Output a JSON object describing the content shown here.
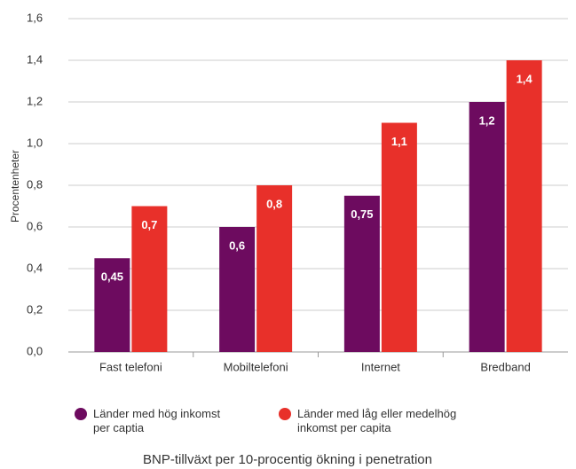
{
  "chart_data": {
    "type": "bar",
    "title": "BNP-tillväxt per 10-procentig ökning i penetration",
    "y_label": "Procentenheter",
    "categories": [
      "Fast telefoni",
      "Mobiltelefoni",
      "Internet",
      "Bredband"
    ],
    "series": [
      {
        "name": "Länder med hög inkomst per captia",
        "color": "#6d0b5f",
        "values": [
          0.45,
          0.6,
          0.75,
          1.2
        ],
        "value_labels": [
          "0,45",
          "0,6",
          "0,75",
          "1,2"
        ]
      },
      {
        "name": "Länder med låg eller medelhög inkomst per capita",
        "color": "#e8302a",
        "values": [
          0.7,
          0.8,
          1.1,
          1.4
        ],
        "value_labels": [
          "0,7",
          "0,8",
          "1,1",
          "1,4"
        ]
      }
    ],
    "ylim": [
      0,
      1.6
    ],
    "yticks": [
      {
        "value": 0,
        "label": "0,0"
      },
      {
        "value": 0.2,
        "label": "0,2"
      },
      {
        "value": 0.4,
        "label": "0,4"
      },
      {
        "value": 0.6,
        "label": "0,6"
      },
      {
        "value": 0.8,
        "label": "0,8"
      },
      {
        "value": 1.0,
        "label": "1,0"
      },
      {
        "value": 1.2,
        "label": "1,2"
      },
      {
        "value": 1.4,
        "label": "1,4"
      },
      {
        "value": 1.6,
        "label": "1,6"
      }
    ],
    "grid": true
  }
}
